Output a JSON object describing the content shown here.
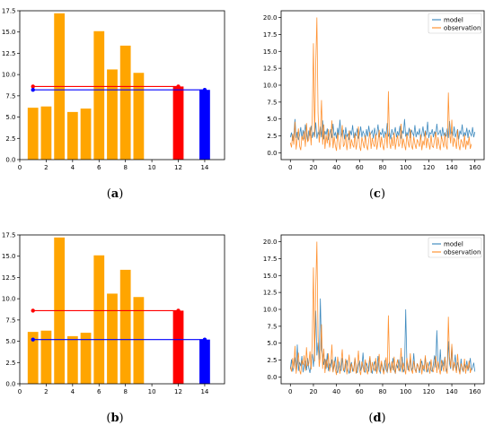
{
  "colors": {
    "bar": "#ffa500",
    "red": "#ff0000",
    "blue": "#0000ff",
    "model": "#1f77b4",
    "observation": "#ff7f0e"
  },
  "chart_data": [
    {
      "id": "a",
      "caption": "a",
      "type": "bar",
      "xlim": [
        0,
        15.5
      ],
      "ylim": [
        0,
        17.5
      ],
      "xticks": [
        0,
        2,
        4,
        6,
        8,
        10,
        12,
        14
      ],
      "yticks": [
        0,
        2.5,
        5,
        7.5,
        10,
        12.5,
        15,
        17.5
      ],
      "ytick_labels": [
        "0.0",
        "2.5",
        "5.0",
        "7.5",
        "10.0",
        "12.5",
        "15.0",
        "17.5"
      ],
      "bars": {
        "x": [
          1,
          2,
          3,
          4,
          5,
          6,
          7,
          8,
          9
        ],
        "values": [
          6.1,
          6.25,
          17.2,
          5.6,
          6.0,
          15.1,
          10.6,
          13.4,
          10.2
        ]
      },
      "red_bar": {
        "x": 12,
        "value": 8.6
      },
      "blue_bar": {
        "x": 14,
        "value": 8.2
      },
      "red_line": {
        "x": [
          1,
          12
        ],
        "y": 8.6
      },
      "blue_line": {
        "x": [
          1,
          14
        ],
        "y": 8.2
      }
    },
    {
      "id": "b",
      "caption": "b",
      "type": "bar",
      "xlim": [
        0,
        15.5
      ],
      "ylim": [
        0,
        17.5
      ],
      "xticks": [
        0,
        2,
        4,
        6,
        8,
        10,
        12,
        14
      ],
      "yticks": [
        0,
        2.5,
        5,
        7.5,
        10,
        12.5,
        15,
        17.5
      ],
      "ytick_labels": [
        "0.0",
        "2.5",
        "5.0",
        "7.5",
        "10.0",
        "12.5",
        "15.0",
        "17.5"
      ],
      "bars": {
        "x": [
          1,
          2,
          3,
          4,
          5,
          6,
          7,
          8,
          9
        ],
        "values": [
          6.1,
          6.25,
          17.2,
          5.6,
          6.0,
          15.1,
          10.6,
          13.4,
          10.2
        ]
      },
      "red_bar": {
        "x": 12,
        "value": 8.6
      },
      "blue_bar": {
        "x": 14,
        "value": 5.2
      },
      "red_line": {
        "x": [
          1,
          12
        ],
        "y": 8.6
      },
      "blue_line": {
        "x": [
          1,
          14
        ],
        "y": 5.2
      }
    },
    {
      "id": "c",
      "caption": "c",
      "type": "line",
      "xlim": [
        -8,
        168
      ],
      "ylim": [
        -1,
        21
      ],
      "xticks": [
        0,
        20,
        40,
        60,
        80,
        100,
        120,
        140,
        160
      ],
      "yticks": [
        0,
        2.5,
        5,
        7.5,
        10,
        12.5,
        15,
        17.5,
        20
      ],
      "ytick_labels": [
        "0.0",
        "2.5",
        "5.0",
        "7.5",
        "10.0",
        "12.5",
        "15.0",
        "17.5",
        "20.0"
      ],
      "legend": {
        "position": "top-right",
        "entries": [
          "model",
          "observation"
        ]
      },
      "series": [
        {
          "name": "model",
          "values": [
            2.3,
            3.0,
            1.8,
            2.5,
            5.0,
            2.2,
            3.1,
            1.9,
            2.6,
            3.8,
            2.1,
            3.4,
            2.0,
            4.2,
            2.7,
            1.8,
            3.3,
            2.5,
            4.0,
            2.2,
            3.1,
            2.4,
            4.5,
            2.1,
            3.0,
            2.6,
            3.9,
            2.3,
            4.8,
            2.0,
            3.2,
            2.7,
            3.6,
            1.9,
            2.8,
            3.5,
            2.2,
            4.3,
            2.5,
            3.0,
            2.1,
            3.7,
            2.6,
            4.9,
            2.3,
            2.9,
            3.4,
            2.0,
            3.8,
            2.4,
            2.8,
            1.9,
            3.3,
            2.6,
            4.1,
            2.2,
            3.0,
            2.5,
            3.6,
            2.1,
            2.7,
            3.9,
            2.3,
            3.2,
            2.8,
            2.0,
            3.5,
            2.4,
            4.0,
            2.6,
            2.9,
            3.3,
            2.1,
            3.7,
            2.5,
            2.8,
            4.2,
            2.3,
            3.0,
            2.7,
            3.6,
            2.2,
            3.1,
            2.6,
            4.4,
            2.4,
            3.0,
            2.0,
            3.5,
            2.7,
            2.9,
            3.8,
            2.3,
            3.2,
            2.5,
            4.0,
            2.1,
            3.3,
            2.8,
            5.0,
            2.4,
            3.0,
            2.6,
            3.7,
            2.2,
            3.4,
            2.9,
            2.5,
            4.1,
            2.3,
            3.1,
            2.7,
            3.6,
            2.0,
            2.8,
            3.9,
            2.4,
            3.3,
            2.6,
            4.6,
            2.2,
            3.0,
            2.8,
            3.5,
            2.3,
            3.2,
            2.5,
            4.3,
            2.7,
            2.9,
            3.4,
            2.1,
            3.8,
            2.6,
            3.0,
            2.4,
            3.6,
            2.2,
            4.7,
            2.8,
            3.1,
            2.5,
            3.9,
            2.3,
            2.9,
            3.5,
            2.0,
            3.3,
            2.7,
            4.2,
            2.4,
            3.0,
            2.6,
            3.7,
            2.2,
            3.4,
            2.9,
            2.5,
            3.8,
            2.3,
            3.1
          ]
        },
        {
          "name": "observation",
          "values": [
            1.5,
            0.8,
            2.8,
            1.2,
            4.6,
            0.5,
            2.1,
            3.6,
            1.0,
            0.4,
            2.5,
            1.8,
            3.2,
            0.9,
            4.4,
            1.6,
            2.0,
            3.8,
            1.1,
            5.5,
            16.2,
            2.3,
            13.0,
            20.0,
            6.0,
            1.5,
            3.1,
            7.8,
            1.2,
            4.2,
            0.6,
            2.6,
            1.4,
            3.5,
            0.8,
            1.9,
            4.8,
            0.7,
            2.4,
            1.1,
            0.3,
            3.0,
            1.7,
            0.5,
            2.2,
            4.1,
            0.9,
            1.3,
            2.7,
            0.4,
            1.8,
            3.3,
            0.6,
            2.0,
            1.2,
            0.8,
            2.9,
            0.5,
            1.6,
            3.9,
            1.0,
            0.3,
            2.3,
            1.5,
            0.7,
            2.6,
            1.1,
            0.4,
            1.9,
            3.1,
            0.6,
            2.2,
            1.3,
            0.9,
            2.8,
            0.5,
            1.7,
            3.4,
            0.8,
            2.4,
            1.2,
            0.4,
            1.9,
            2.9,
            0.7,
            9.1,
            1.5,
            0.6,
            2.3,
            1.0,
            3.0,
            0.5,
            1.8,
            2.6,
            0.9,
            1.4,
            4.3,
            0.7,
            2.1,
            1.2,
            0.4,
            2.8,
            1.6,
            0.8,
            3.5,
            1.1,
            0.5,
            2.4,
            1.3,
            0.6,
            2.0,
            1.5,
            0.9,
            2.7,
            0.4,
            1.8,
            1.1,
            3.2,
            0.7,
            2.2,
            1.4,
            0.5,
            2.6,
            1.0,
            0.8,
            1.9,
            3.1,
            0.6,
            2.3,
            1.2,
            0.4,
            2.5,
            1.7,
            0.8,
            2.9,
            1.1,
            0.5,
            8.9,
            3.0,
            1.4,
            4.9,
            0.9,
            2.2,
            1.6,
            0.6,
            3.4,
            1.2,
            0.4,
            2.0,
            1.5,
            0.8,
            2.7,
            0.5,
            1.8,
            1.1,
            2.4,
            0.6,
            1.3
          ]
        }
      ]
    },
    {
      "id": "d",
      "caption": "d",
      "type": "line",
      "xlim": [
        -8,
        168
      ],
      "ylim": [
        -1,
        21
      ],
      "xticks": [
        0,
        20,
        40,
        60,
        80,
        100,
        120,
        140,
        160
      ],
      "yticks": [
        0,
        2.5,
        5,
        7.5,
        10,
        12.5,
        15,
        17.5,
        20
      ],
      "ytick_labels": [
        "0.0",
        "2.5",
        "5.0",
        "7.5",
        "10.0",
        "12.5",
        "15.0",
        "17.5",
        "20.0"
      ],
      "legend": {
        "position": "top-right",
        "entries": [
          "model",
          "observation"
        ]
      },
      "series": [
        {
          "name": "model",
          "values": [
            1.2,
            2.6,
            0.8,
            1.5,
            2.9,
            1.1,
            4.8,
            0.9,
            2.2,
            1.6,
            3.1,
            0.7,
            1.9,
            2.4,
            1.0,
            2.8,
            1.3,
            0.6,
            2.1,
            3.4,
            1.5,
            4.0,
            9.8,
            3.2,
            5.1,
            2.5,
            11.6,
            4.0,
            3.3,
            1.8,
            2.7,
            1.2,
            3.5,
            0.9,
            2.0,
            1.4,
            2.6,
            0.8,
            1.7,
            3.0,
            1.1,
            0.6,
            2.3,
            1.5,
            0.9,
            2.8,
            1.2,
            0.7,
            1.9,
            2.5,
            1.0,
            0.5,
            1.6,
            2.2,
            0.8,
            1.3,
            2.7,
            1.1,
            0.6,
            1.8,
            2.4,
            0.9,
            1.4,
            3.6,
            1.0,
            0.7,
            2.1,
            1.5,
            0.8,
            2.9,
            1.2,
            0.5,
            1.7,
            2.3,
            0.9,
            1.3,
            3.1,
            1.0,
            0.6,
            2.0,
            1.4,
            0.8,
            2.5,
            1.1,
            0.7,
            1.8,
            2.2,
            0.9,
            1.5,
            2.8,
            1.0,
            0.6,
            1.9,
            1.3,
            2.6,
            0.8,
            1.6,
            3.0,
            0.7,
            1.2,
            10.0,
            2.2,
            1.0,
            1.7,
            2.6,
            0.9,
            1.4,
            3.5,
            1.1,
            0.8,
            2.0,
            1.5,
            0.6,
            1.8,
            2.4,
            1.2,
            0.9,
            2.9,
            1.3,
            0.7,
            1.6,
            2.3,
            1.0,
            0.8,
            1.9,
            3.2,
            1.4,
            6.9,
            2.1,
            1.1,
            4.1,
            0.9,
            2.5,
            1.6,
            3.0,
            0.8,
            1.3,
            5.3,
            2.0,
            1.2,
            4.5,
            1.0,
            1.7,
            3.3,
            0.9,
            2.2,
            1.5,
            0.7,
            2.7,
            1.1,
            0.8,
            1.9,
            1.3,
            2.4,
            0.9,
            1.6,
            2.8,
            1.0,
            1.4,
            2.1,
            0.8
          ]
        },
        {
          "name": "observation",
          "values": [
            1.5,
            0.8,
            2.8,
            1.2,
            4.6,
            0.5,
            2.1,
            3.6,
            1.0,
            0.4,
            2.5,
            1.8,
            3.2,
            0.9,
            4.4,
            1.6,
            2.0,
            3.8,
            1.1,
            5.5,
            16.2,
            2.3,
            13.0,
            20.0,
            6.0,
            1.5,
            3.1,
            7.8,
            1.2,
            4.2,
            0.6,
            2.6,
            1.4,
            3.5,
            0.8,
            1.9,
            4.8,
            0.7,
            2.4,
            1.1,
            0.3,
            3.0,
            1.7,
            0.5,
            2.2,
            4.1,
            0.9,
            1.3,
            2.7,
            0.4,
            1.8,
            3.3,
            0.6,
            2.0,
            1.2,
            0.8,
            2.9,
            0.5,
            1.6,
            3.9,
            1.0,
            0.3,
            2.3,
            1.5,
            0.7,
            2.6,
            1.1,
            0.4,
            1.9,
            3.1,
            0.6,
            2.2,
            1.3,
            0.9,
            2.8,
            0.5,
            1.7,
            3.4,
            0.8,
            2.4,
            1.2,
            0.4,
            1.9,
            2.9,
            0.7,
            9.1,
            1.5,
            0.6,
            2.3,
            1.0,
            3.0,
            0.5,
            1.8,
            2.6,
            0.9,
            1.4,
            4.3,
            0.7,
            2.1,
            1.2,
            0.4,
            2.8,
            1.6,
            0.8,
            3.5,
            1.1,
            0.5,
            2.4,
            1.3,
            0.6,
            2.0,
            1.5,
            0.9,
            2.7,
            0.4,
            1.8,
            1.1,
            3.2,
            0.7,
            2.2,
            1.4,
            0.5,
            2.6,
            1.0,
            0.8,
            1.9,
            3.1,
            0.6,
            2.3,
            1.2,
            0.4,
            2.5,
            1.7,
            0.8,
            2.9,
            1.1,
            0.5,
            8.9,
            3.0,
            1.4,
            4.9,
            0.9,
            2.2,
            1.6,
            0.6,
            3.4,
            1.2,
            0.4,
            2.0,
            1.5,
            0.8,
            2.7,
            0.5,
            1.8,
            1.1,
            2.4,
            0.6,
            1.3
          ]
        }
      ]
    }
  ]
}
